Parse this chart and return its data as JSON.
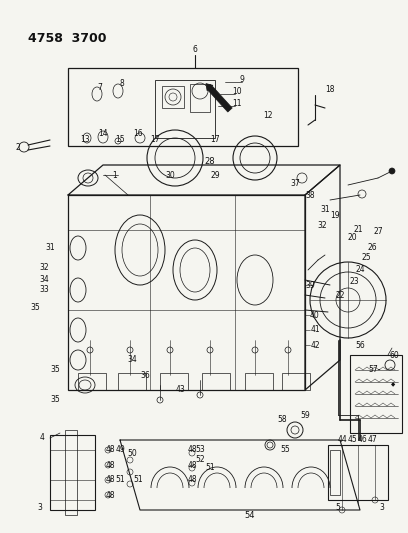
{
  "title": "4758  3700",
  "bg_color": "#f5f5f0",
  "line_color": "#1a1a1a",
  "text_color": "#111111",
  "figsize": [
    4.08,
    5.33
  ],
  "dpi": 100,
  "lw_main": 0.8,
  "lw_thin": 0.5,
  "fs_title": 9,
  "fs_label": 6.0,
  "fs_small": 5.5
}
